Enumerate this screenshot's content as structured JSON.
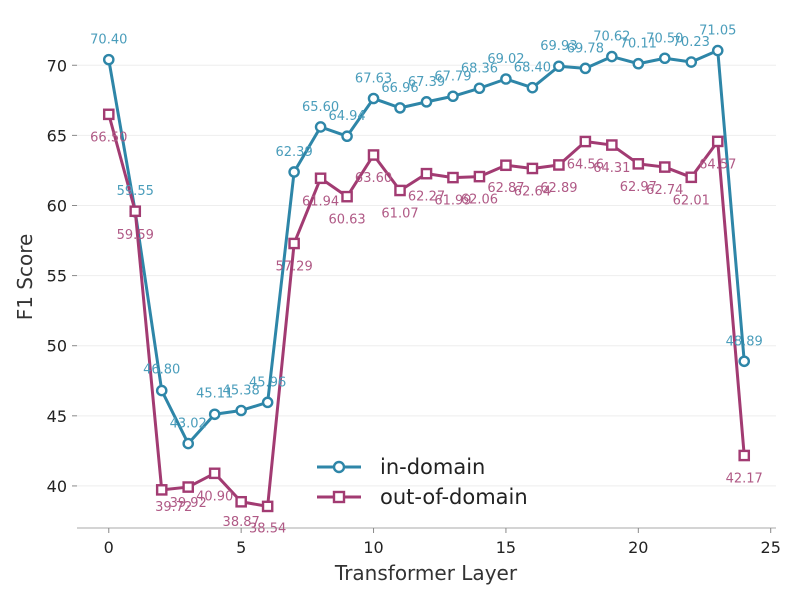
{
  "chart_data": {
    "type": "line",
    "xlabel": "Transformer Layer",
    "ylabel": "F1 Score",
    "xlim": [
      -1.2,
      25.2
    ],
    "ylim": [
      37,
      72.8
    ],
    "xticks": [
      0,
      5,
      10,
      15,
      20,
      25
    ],
    "yticks": [
      40,
      45,
      50,
      55,
      60,
      65,
      70
    ],
    "grid": "horizontal",
    "legend_position": "lower-center",
    "x": [
      0,
      1,
      2,
      3,
      4,
      5,
      6,
      7,
      8,
      9,
      10,
      11,
      12,
      13,
      14,
      15,
      16,
      17,
      18,
      19,
      20,
      21,
      22,
      23,
      24
    ],
    "series": [
      {
        "name": "in-domain",
        "color": "#2e86a8",
        "label_color": "#4a9dbb",
        "marker": "circle",
        "values": [
          70.4,
          59.55,
          46.8,
          43.02,
          45.11,
          45.38,
          45.96,
          62.39,
          65.6,
          64.94,
          67.63,
          66.96,
          67.39,
          67.79,
          68.36,
          69.02,
          68.4,
          69.93,
          69.78,
          70.62,
          70.11,
          70.5,
          70.23,
          71.05,
          48.89
        ],
        "labels": [
          "70.40",
          "59.55",
          "46.80",
          "43.02",
          "45.11",
          "45.38",
          "45.96",
          "62.39",
          "65.60",
          "64.94",
          "67.63",
          "66.96",
          "67.39",
          "67.79",
          "68.36",
          "69.02",
          "68.40",
          "69.93",
          "69.78",
          "70.62",
          "70.11",
          "70.50",
          "70.23",
          "71.05",
          "48.89"
        ]
      },
      {
        "name": "out-of-domain",
        "color": "#a23b72",
        "label_color": "#b05a86",
        "marker": "square",
        "values": [
          66.5,
          59.59,
          39.72,
          39.92,
          40.9,
          38.87,
          38.54,
          57.29,
          61.94,
          60.63,
          63.6,
          61.07,
          62.27,
          61.99,
          62.06,
          62.87,
          62.64,
          62.89,
          64.56,
          64.31,
          62.97,
          62.74,
          62.01,
          64.57,
          42.17
        ],
        "labels": [
          "66.50",
          "59.59",
          "39.72",
          "39.92",
          "40.90",
          "38.87",
          "38.54",
          "57.29",
          "61.94",
          "60.63",
          "63.60",
          "61.07",
          "62.27",
          "61.99",
          "62.06",
          "62.87",
          "62.64",
          "62.89",
          "64.56",
          "64.31",
          "62.97",
          "62.74",
          "62.01",
          "64.57",
          "42.17"
        ]
      }
    ]
  }
}
